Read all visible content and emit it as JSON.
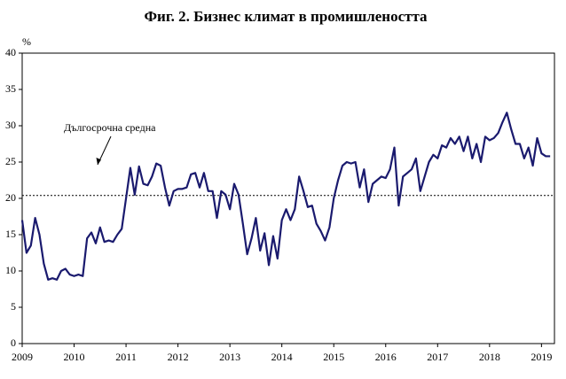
{
  "chart_data": {
    "type": "line",
    "title": "Фиг. 2. Бизнес климат в промишлеността",
    "y_label": "%",
    "annotation": "Дългосрочна средна",
    "reference_line": 20.4,
    "color": "#1a1a6e",
    "xlim": [
      2009,
      2019.25
    ],
    "xticks": [
      2009,
      2010,
      2011,
      2012,
      2013,
      2014,
      2015,
      2016,
      2017,
      2018,
      2019
    ],
    "ylim": [
      0,
      40
    ],
    "yticks": [
      0,
      5,
      10,
      15,
      20,
      25,
      30,
      35,
      40
    ],
    "x": [
      2009,
      2009.083,
      2009.167,
      2009.25,
      2009.333,
      2009.417,
      2009.5,
      2009.583,
      2009.667,
      2009.75,
      2009.833,
      2009.917,
      2010,
      2010.083,
      2010.167,
      2010.25,
      2010.333,
      2010.417,
      2010.5,
      2010.583,
      2010.667,
      2010.75,
      2010.833,
      2010.917,
      2011,
      2011.083,
      2011.167,
      2011.25,
      2011.333,
      2011.417,
      2011.5,
      2011.583,
      2011.667,
      2011.75,
      2011.833,
      2011.917,
      2012,
      2012.083,
      2012.167,
      2012.25,
      2012.333,
      2012.417,
      2012.5,
      2012.583,
      2012.667,
      2012.75,
      2012.833,
      2012.917,
      2013,
      2013.083,
      2013.167,
      2013.25,
      2013.333,
      2013.417,
      2013.5,
      2013.583,
      2013.667,
      2013.75,
      2013.833,
      2013.917,
      2014,
      2014.083,
      2014.167,
      2014.25,
      2014.333,
      2014.417,
      2014.5,
      2014.583,
      2014.667,
      2014.75,
      2014.833,
      2014.917,
      2015,
      2015.083,
      2015.167,
      2015.25,
      2015.333,
      2015.417,
      2015.5,
      2015.583,
      2015.667,
      2015.75,
      2015.833,
      2015.917,
      2016,
      2016.083,
      2016.167,
      2016.25,
      2016.333,
      2016.417,
      2016.5,
      2016.583,
      2016.667,
      2016.75,
      2016.833,
      2016.917,
      2017,
      2017.083,
      2017.167,
      2017.25,
      2017.333,
      2017.417,
      2017.5,
      2017.583,
      2017.667,
      2017.75,
      2017.833,
      2017.917,
      2018,
      2018.083,
      2018.167,
      2018.25,
      2018.333,
      2018.417,
      2018.5,
      2018.583,
      2018.667,
      2018.75,
      2018.833,
      2018.917,
      2019,
      2019.083,
      2019.167
    ],
    "values": [
      17,
      12.5,
      13.5,
      17.3,
      15,
      11,
      8.8,
      9,
      8.8,
      10,
      10.3,
      9.5,
      9.3,
      9.5,
      9.3,
      14.5,
      15.3,
      13.8,
      16,
      14,
      14.2,
      14,
      15,
      15.8,
      20,
      24.2,
      20.5,
      24.4,
      22,
      21.8,
      23,
      24.8,
      24.5,
      21.5,
      19,
      21,
      21.3,
      21.3,
      21.5,
      23.3,
      23.5,
      21.5,
      23.5,
      21,
      21,
      17.3,
      21,
      20.5,
      18.5,
      22,
      20.5,
      16.5,
      12.3,
      14.5,
      17.3,
      12.8,
      15.2,
      10.8,
      14.8,
      11.7,
      17,
      18.5,
      17,
      18.5,
      23,
      21,
      18.8,
      19,
      16.5,
      15.5,
      14.2,
      16,
      20,
      22.5,
      24.5,
      25,
      24.8,
      25,
      21.5,
      24,
      19.5,
      22,
      22.5,
      23,
      22.8,
      24,
      27,
      19,
      23,
      23.5,
      24,
      25.5,
      21,
      23,
      25,
      26,
      25.5,
      27.3,
      27,
      28.3,
      27.5,
      28.5,
      26.5,
      28.5,
      25.5,
      27.5,
      25,
      28.5,
      28,
      28.3,
      29,
      30.5,
      31.8,
      29.5,
      27.5,
      27.5,
      25.5,
      27,
      24.5,
      28.3,
      26.2,
      25.8,
      25.8
    ]
  }
}
